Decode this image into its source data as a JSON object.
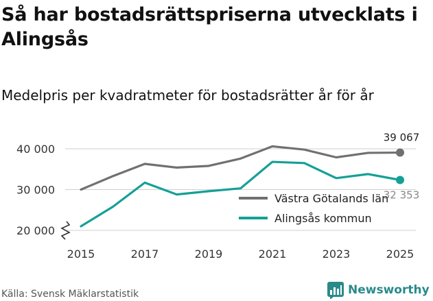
{
  "title": "Så har bostadsrättspriserna utvecklats i Alingsås",
  "subtitle": "Medelpris per kvadratmeter för bostadsrätter år för år",
  "source": "Källa: Svensk Mäklarstatistik",
  "brand": {
    "name": "Newsworthy",
    "icon": "newsworthy-logo-icon",
    "color": "#2a8a8a"
  },
  "chart_data": {
    "type": "line",
    "title": "Medelpris per kvadratmeter för bostadsrätter år för år",
    "xlabel": "",
    "ylabel": "",
    "x": [
      2015,
      2016,
      2017,
      2018,
      2019,
      2020,
      2021,
      2022,
      2023,
      2024,
      2025
    ],
    "xticks": [
      "2015",
      "2017",
      "2019",
      "2021",
      "2023",
      "2025"
    ],
    "yticks": [
      20000,
      30000,
      40000
    ],
    "ytick_labels": [
      "20 000",
      "30 000",
      "40 000"
    ],
    "ylim": [
      18000,
      42000
    ],
    "grid": true,
    "axis_break": true,
    "legend_position": "bottom-right",
    "series": [
      {
        "name": "Västra Götalands län",
        "color": "#707070",
        "values": [
          30000,
          33300,
          36300,
          35400,
          35800,
          37600,
          40600,
          39800,
          37900,
          39000,
          39067
        ],
        "end_label": "39 067"
      },
      {
        "name": "Alingsås kommun",
        "color": "#14a096",
        "values": [
          21000,
          25800,
          31700,
          28800,
          29600,
          30300,
          36800,
          36500,
          32800,
          33800,
          32353
        ],
        "end_label": "32 353"
      }
    ]
  }
}
